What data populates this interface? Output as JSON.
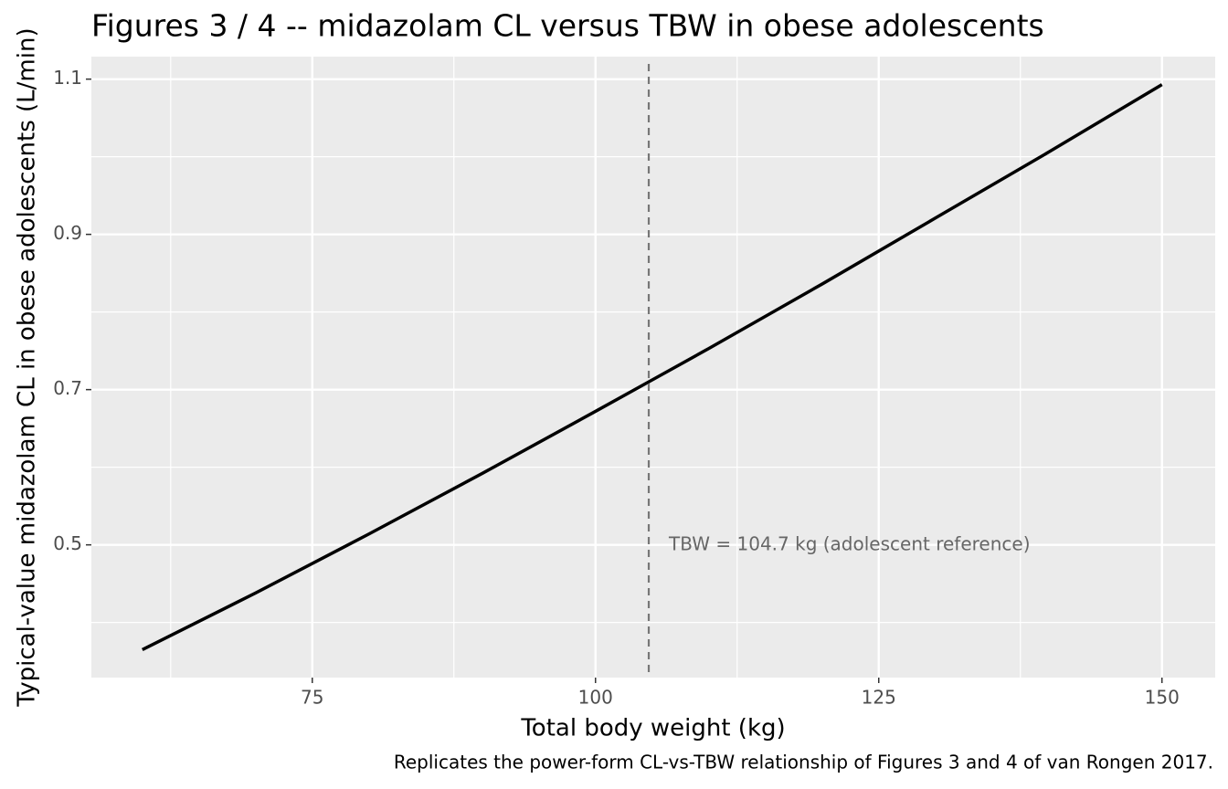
{
  "chart_data": {
    "type": "line",
    "title": "Figures 3 / 4 -- midazolam CL versus TBW in obese adolescents",
    "x_label": "Total body weight (kg)",
    "y_label": "Typical-value midazolam CL in obese adolescents (L/min)",
    "caption": "Replicates the power-form CL-vs-TBW relationship of Figures 3 and 4 of van Rongen 2017.",
    "x": [
      60,
      70,
      80,
      90,
      100,
      104.7,
      110,
      120,
      130,
      140,
      150
    ],
    "series": [
      {
        "color": "#000000",
        "values": [
          0.365,
          0.438,
          0.514,
          0.592,
          0.672,
          0.71,
          0.753,
          0.836,
          0.921,
          1.006,
          1.093
        ]
      }
    ],
    "xlim": [
      55.5,
      154.7
    ],
    "xticks": [
      75,
      100,
      125,
      150
    ],
    "ylim": [
      0.329,
      1.129
    ],
    "yticks": [
      0.5,
      0.7,
      0.9,
      1.1
    ],
    "grid": true,
    "vline": {
      "x": 104.7,
      "color": "#777777",
      "label": "TBW = 104.7 kg (adolescent reference)"
    }
  }
}
